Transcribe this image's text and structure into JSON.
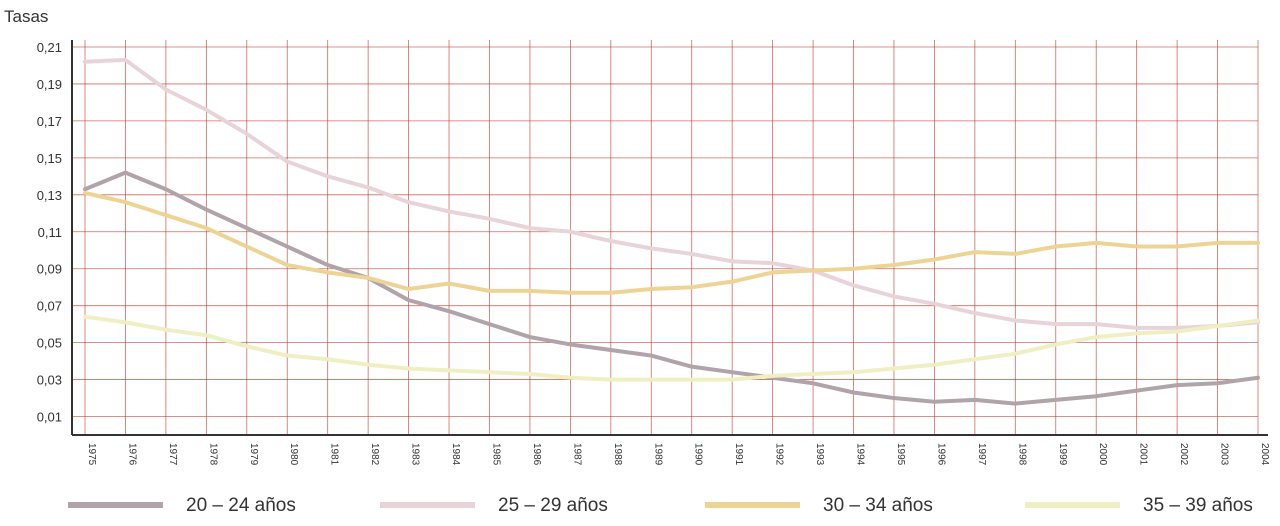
{
  "chart_data": {
    "type": "line",
    "ylabel": "Tasas",
    "ylim": [
      0,
      0.21
    ],
    "yticks": [
      "0,01",
      "0,03",
      "0,05",
      "0,07",
      "0,09",
      "0,11",
      "0,13",
      "0,15",
      "0,17",
      "0,19",
      "0,21"
    ],
    "ytick_values": [
      0.01,
      0.03,
      0.05,
      0.07,
      0.09,
      0.11,
      0.13,
      0.15,
      0.17,
      0.19,
      0.21
    ],
    "x": [
      "1975",
      "1976",
      "1977",
      "1978",
      "1979",
      "1980",
      "1981",
      "1982",
      "1983",
      "1984",
      "1985",
      "1986",
      "1987",
      "1988",
      "1989",
      "1990",
      "1991",
      "1992",
      "1993",
      "1994",
      "1995",
      "1996",
      "1997",
      "1998",
      "1999",
      "2000",
      "2001",
      "2002",
      "2003",
      "2004"
    ],
    "grid": true,
    "legend_position": "bottom",
    "series": [
      {
        "name": "20 – 24 años",
        "color": "#b0a3aa",
        "values": [
          0.133,
          0.142,
          0.133,
          0.122,
          0.112,
          0.102,
          0.092,
          0.085,
          0.073,
          0.067,
          0.06,
          0.053,
          0.049,
          0.046,
          0.043,
          0.037,
          0.034,
          0.031,
          0.028,
          0.023,
          0.02,
          0.018,
          0.019,
          0.017,
          0.019,
          0.021,
          0.024,
          0.027,
          0.028,
          0.031
        ]
      },
      {
        "name": "25 – 29 años",
        "color": "#e8d3d8",
        "values": [
          0.202,
          0.203,
          0.187,
          0.176,
          0.163,
          0.148,
          0.14,
          0.134,
          0.126,
          0.121,
          0.117,
          0.112,
          0.11,
          0.105,
          0.101,
          0.098,
          0.094,
          0.093,
          0.089,
          0.081,
          0.075,
          0.071,
          0.066,
          0.062,
          0.06,
          0.06,
          0.058,
          0.058,
          0.059,
          0.061
        ]
      },
      {
        "name": "30 – 34 años",
        "color": "#edd495",
        "values": [
          0.131,
          0.126,
          0.119,
          0.112,
          0.102,
          0.092,
          0.088,
          0.085,
          0.079,
          0.082,
          0.078,
          0.078,
          0.077,
          0.077,
          0.079,
          0.08,
          0.083,
          0.088,
          0.089,
          0.09,
          0.092,
          0.095,
          0.099,
          0.098,
          0.102,
          0.104,
          0.102,
          0.102,
          0.104,
          0.104
        ]
      },
      {
        "name": "35 – 39 años",
        "color": "#f0efc4",
        "values": [
          0.064,
          0.061,
          0.057,
          0.054,
          0.048,
          0.043,
          0.041,
          0.038,
          0.036,
          0.035,
          0.034,
          0.033,
          0.031,
          0.03,
          0.03,
          0.03,
          0.03,
          0.032,
          0.033,
          0.034,
          0.036,
          0.038,
          0.041,
          0.044,
          0.049,
          0.053,
          0.055,
          0.056,
          0.059,
          0.062
        ]
      }
    ]
  }
}
